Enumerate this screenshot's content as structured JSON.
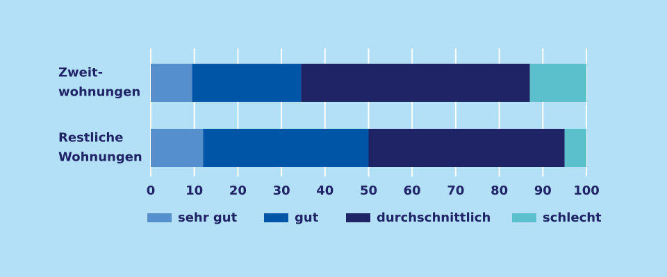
{
  "chart_data": {
    "type": "stacked-barh",
    "categories": [
      "Zweit-\nwohnungen",
      "Restliche\nWohnungen"
    ],
    "series": [
      {
        "name": "sehr gut",
        "color": "#5590cd",
        "values": [
          9.5,
          12
        ]
      },
      {
        "name": "gut",
        "color": "#0055a6",
        "values": [
          25,
          38
        ]
      },
      {
        "name": "durchschnittlich",
        "color": "#1f2467",
        "values": [
          52.5,
          45
        ]
      },
      {
        "name": "schlecht",
        "color": "#5bc0cc",
        "values": [
          13,
          5
        ]
      }
    ],
    "xlim": [
      0,
      100
    ],
    "xticks": [
      0,
      10,
      20,
      30,
      40,
      50,
      60,
      70,
      80,
      90,
      100
    ],
    "grid": true
  }
}
